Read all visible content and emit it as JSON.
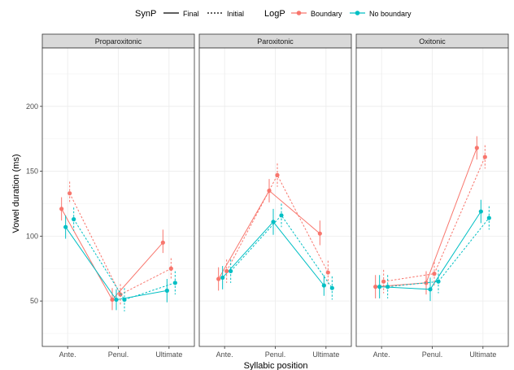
{
  "chart_data": {
    "type": "line",
    "xlabel": "Syllabic position",
    "ylabel": "Vowel duration (ms)",
    "ylim": [
      15,
      245
    ],
    "yticks": [
      50,
      100,
      150,
      200
    ],
    "categories": [
      "Ante.",
      "Penul.",
      "Ultimate"
    ],
    "grid": true,
    "legend_position": "top",
    "legend": {
      "synp_title": "SynP",
      "synp_items": [
        "Final",
        "Initial"
      ],
      "logp_title": "LogP",
      "logp_items": [
        "Boundary",
        "No boundary"
      ]
    },
    "colors": {
      "Boundary": "#F8766D",
      "No boundary": "#00BFC4"
    },
    "panels": [
      {
        "name": "Proparoxitonic",
        "series": [
          {
            "name": "Final, Boundary",
            "synp": "Final",
            "logp": "Boundary",
            "values": [
              121,
              51,
              95
            ],
            "lower": [
              112,
              43,
              87
            ],
            "upper": [
              130,
              60,
              105
            ]
          },
          {
            "name": "Final, No boundary",
            "synp": "Final",
            "logp": "No boundary",
            "values": [
              107,
              51,
              58
            ],
            "lower": [
              98,
              43,
              49
            ],
            "upper": [
              116,
              59,
              67
            ]
          },
          {
            "name": "Initial, Boundary",
            "synp": "Initial",
            "logp": "Boundary",
            "values": [
              133,
              55,
              75
            ],
            "lower": [
              125,
              47,
              67
            ],
            "upper": [
              142,
              63,
              83
            ]
          },
          {
            "name": "Initial, No boundary",
            "synp": "Initial",
            "logp": "No boundary",
            "values": [
              113,
              51,
              64
            ],
            "lower": [
              104,
              42,
              55
            ],
            "upper": [
              122,
              60,
              73
            ]
          }
        ]
      },
      {
        "name": "Paroxitonic",
        "series": [
          {
            "name": "Final, Boundary",
            "synp": "Final",
            "logp": "Boundary",
            "values": [
              67,
              135,
              102
            ],
            "lower": [
              58,
              126,
              93
            ],
            "upper": [
              76,
              144,
              112
            ]
          },
          {
            "name": "Final, No boundary",
            "synp": "Final",
            "logp": "No boundary",
            "values": [
              68,
              111,
              62
            ],
            "lower": [
              59,
              101,
              54
            ],
            "upper": [
              77,
              121,
              70
            ]
          },
          {
            "name": "Initial, Boundary",
            "synp": "Initial",
            "logp": "Boundary",
            "values": [
              73,
              147,
              72
            ],
            "lower": [
              64,
              138,
              63
            ],
            "upper": [
              82,
              156,
              81
            ]
          },
          {
            "name": "Initial, No boundary",
            "synp": "Initial",
            "logp": "No boundary",
            "values": [
              73,
              116,
              60
            ],
            "lower": [
              64,
              107,
              51
            ],
            "upper": [
              82,
              125,
              69
            ]
          }
        ]
      },
      {
        "name": "Oxitonic",
        "series": [
          {
            "name": "Final, Boundary",
            "synp": "Final",
            "logp": "Boundary",
            "values": [
              61,
              64,
              168
            ],
            "lower": [
              52,
              55,
              159
            ],
            "upper": [
              70,
              73,
              177
            ]
          },
          {
            "name": "Final, No boundary",
            "synp": "Final",
            "logp": "No boundary",
            "values": [
              61,
              59,
              119
            ],
            "lower": [
              52,
              50,
              110
            ],
            "upper": [
              70,
              68,
              128
            ]
          },
          {
            "name": "Initial, Boundary",
            "synp": "Initial",
            "logp": "Boundary",
            "values": [
              65,
              71,
              161
            ],
            "lower": [
              56,
              62,
              152
            ],
            "upper": [
              74,
              80,
              170
            ]
          },
          {
            "name": "Initial, No boundary",
            "synp": "Initial",
            "logp": "No boundary",
            "values": [
              61,
              65,
              114
            ],
            "lower": [
              52,
              56,
              105
            ],
            "upper": [
              70,
              74,
              123
            ]
          }
        ]
      }
    ]
  }
}
